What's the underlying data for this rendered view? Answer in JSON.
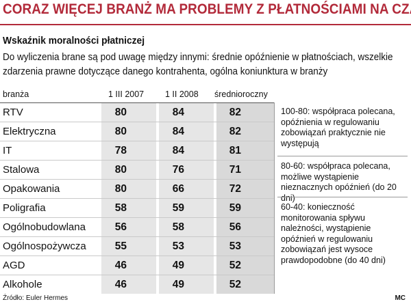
{
  "title": "CORAZ WIĘCEJ BRANŻ MA PROBLEMY Z PŁATNOŚCIAMI NA CZAS",
  "subtitle": "Wskaźnik moralności płatniczej",
  "description": "Do wyliczenia brane są pod uwagę między innymi: średnie opóźnienie w płatnościach, wszelkie zdarzenia prawne dotyczące danego kontrahenta, ogólna koniunktura w branży",
  "columns": {
    "branch": "branża",
    "c1": "1 III 2007",
    "c2": "1 II 2008",
    "c3": "średnioroczny"
  },
  "legend": [
    {
      "text": "100-80: współpraca polecana, opóźnienia w regulowaniu zobowiązań praktycznie nie występują"
    },
    {
      "text": "80-60: współpraca polecana, możliwe wystąpienie nieznacznych opóźnień (do 20 dni)"
    },
    {
      "text": "60-40: konieczność monitorowania spływu należności, wystąpienie opóźnień w regulowaniu zobowiązań jest wysoce prawdopodobne (do 40 dni)"
    }
  ],
  "source": "Źródło: Euler Hermes",
  "credit": "MC",
  "chart_data": {
    "type": "table",
    "columns": [
      "branża",
      "1 III 2007",
      "1 II 2008",
      "średnioroczny"
    ],
    "rows": [
      {
        "branch": "RTV",
        "v2007": 80,
        "v2008": 84,
        "avg": 82
      },
      {
        "branch": "Elektryczna",
        "v2007": 80,
        "v2008": 84,
        "avg": 82
      },
      {
        "branch": "IT",
        "v2007": 78,
        "v2008": 84,
        "avg": 81
      },
      {
        "branch": "Stalowa",
        "v2007": 80,
        "v2008": 76,
        "avg": 71
      },
      {
        "branch": "Opakowania",
        "v2007": 80,
        "v2008": 66,
        "avg": 72
      },
      {
        "branch": "Poligrafia",
        "v2007": 58,
        "v2008": 59,
        "avg": 59
      },
      {
        "branch": "Ogólnobudowlana",
        "v2007": 56,
        "v2008": 58,
        "avg": 56
      },
      {
        "branch": "Ogólnospożywcza",
        "v2007": 55,
        "v2008": 53,
        "avg": 53
      },
      {
        "branch": "AGD",
        "v2007": 46,
        "v2008": 49,
        "avg": 52
      },
      {
        "branch": "Alkohole",
        "v2007": 46,
        "v2008": 49,
        "avg": 52
      }
    ]
  }
}
